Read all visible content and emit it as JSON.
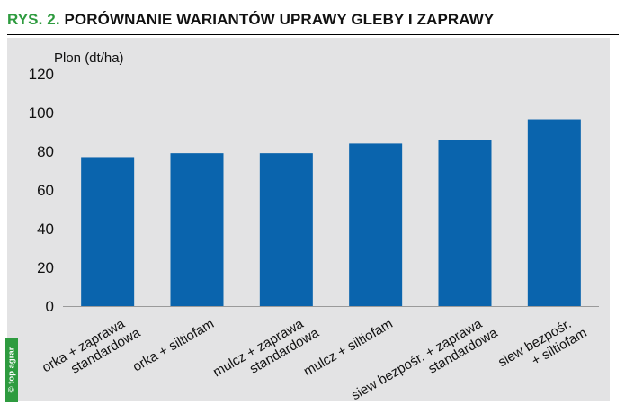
{
  "figure": {
    "title_prefix": "RYS. 2.",
    "title": "PORÓWNANIE WARIANTÓW UPRAWY GLEBY I ZAPRAWY",
    "source": "© top agrar"
  },
  "colors": {
    "bar": "#0a64ad",
    "panel": "#e3e3e4",
    "accent": "#2e9b3f"
  },
  "chart_data": {
    "type": "bar",
    "title": "",
    "xlabel": "",
    "ylabel": "Plon (dt/ha)",
    "ylim": [
      0,
      120
    ],
    "yticks": [
      0,
      20,
      40,
      60,
      80,
      100,
      120
    ],
    "grid": false,
    "categories": [
      [
        "orka + zaprawa",
        "standardowa"
      ],
      [
        "orka + siltiofam"
      ],
      [
        "mulcz + zaprawa",
        "standardowa"
      ],
      [
        "mulcz + siltiofam"
      ],
      [
        "siew bezpośr. + zaprawa",
        "standardowa"
      ],
      [
        "siew bezpośr.",
        "+ siltiofam"
      ]
    ],
    "values": [
      77,
      79,
      79,
      84,
      86,
      96.5
    ]
  }
}
